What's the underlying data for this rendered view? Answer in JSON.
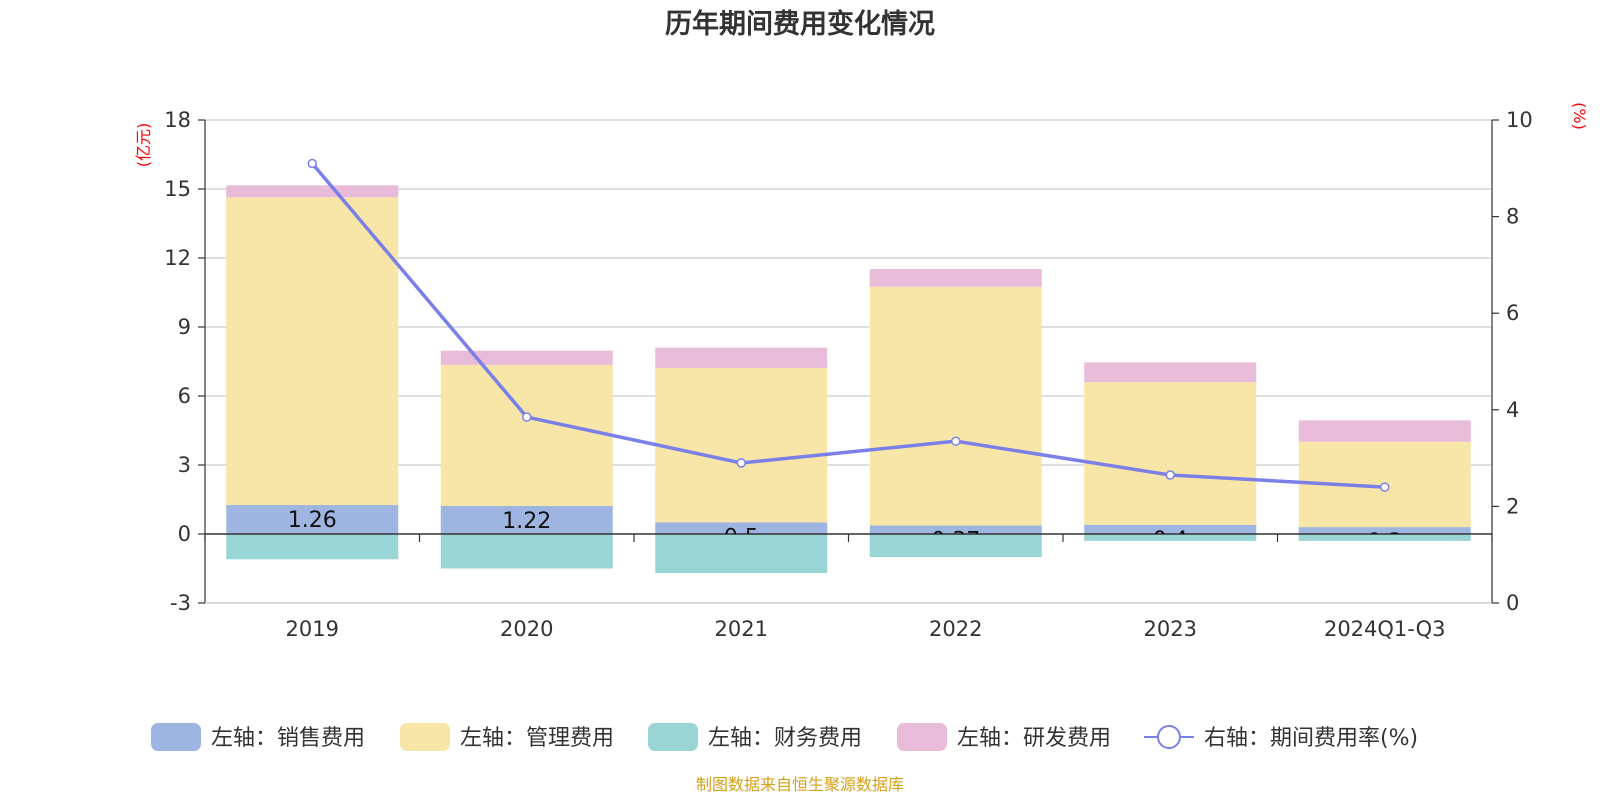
{
  "chart_data": {
    "type": "bar",
    "title": "历年期间费用变化情况",
    "categories": [
      "2019",
      "2020",
      "2021",
      "2022",
      "2023",
      "2024Q1-Q3"
    ],
    "left_axis": {
      "unit": "(亿元)",
      "min": -3,
      "max": 18,
      "ticks": [
        -3,
        0,
        3,
        6,
        9,
        12,
        15,
        18
      ]
    },
    "right_axis": {
      "unit": "(%)",
      "min": 0,
      "max": 10,
      "ticks": [
        0,
        2,
        4,
        6,
        8,
        10
      ]
    },
    "series": [
      {
        "name": "左轴：销售费用",
        "color": "#9db5e0",
        "values": [
          1.26,
          1.22,
          0.5,
          0.37,
          0.4,
          0.3
        ],
        "labels": [
          "1.26",
          "1.22",
          "0.5",
          "0.37",
          "0.4",
          "0.3"
        ]
      },
      {
        "name": "左轴：管理费用",
        "color": "#f8e6a8",
        "values": [
          13.38,
          6.13,
          6.72,
          10.38,
          6.2,
          3.71
        ]
      },
      {
        "name": "左轴：财务费用",
        "color": "#99d5d5",
        "values": [
          -1.1,
          -1.5,
          -1.7,
          -1.0,
          -0.3,
          -0.3
        ]
      },
      {
        "name": "左轴：研发费用",
        "color": "#e8bbd9",
        "values": [
          0.52,
          0.62,
          0.88,
          0.77,
          0.86,
          0.93
        ]
      },
      {
        "name": "右轴：期间费用率(%)",
        "type": "line",
        "color": "#7b7fe8",
        "values": [
          9.1,
          3.85,
          2.9,
          3.35,
          2.65,
          2.4
        ]
      }
    ]
  },
  "footer": {
    "source": "制图数据来自恒生聚源数据库"
  }
}
